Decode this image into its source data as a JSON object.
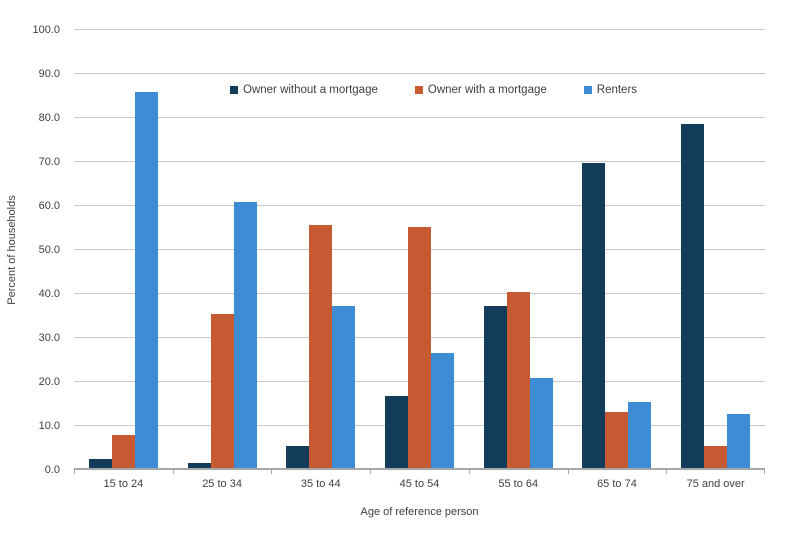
{
  "chart_data": {
    "type": "bar",
    "title": "",
    "categories": [
      "15 to 24",
      "25 to 34",
      "35 to 44",
      "45 to 54",
      "55 to 64",
      "65 to 74",
      "75 and over"
    ],
    "series": [
      {
        "name": "Owner without a mortgage",
        "color": "#123c59",
        "values": [
          2.4,
          1.5,
          5.5,
          16.8,
          37.3,
          69.7,
          78.7
        ]
      },
      {
        "name": "Owner with a mortgage",
        "color": "#c65a33",
        "values": [
          8.0,
          35.5,
          55.6,
          55.2,
          40.4,
          13.2,
          5.5
        ]
      },
      {
        "name": "Renters",
        "color": "#3e8cd4",
        "values": [
          86.0,
          61.0,
          37.3,
          26.7,
          21.0,
          15.4,
          12.8
        ]
      }
    ],
    "xlabel": "Age of reference person",
    "ylabel": "Percent of households",
    "ylim": [
      0,
      100
    ],
    "ytick_step": 10,
    "ytick_decimals": 1,
    "grid": "horizontal",
    "legend_position": "top-inside",
    "style": {
      "grid_color": "#c8c8c8",
      "axis_color": "#a6a6a6",
      "text_color": "#3f3f3f",
      "background": "#ffffff"
    }
  }
}
